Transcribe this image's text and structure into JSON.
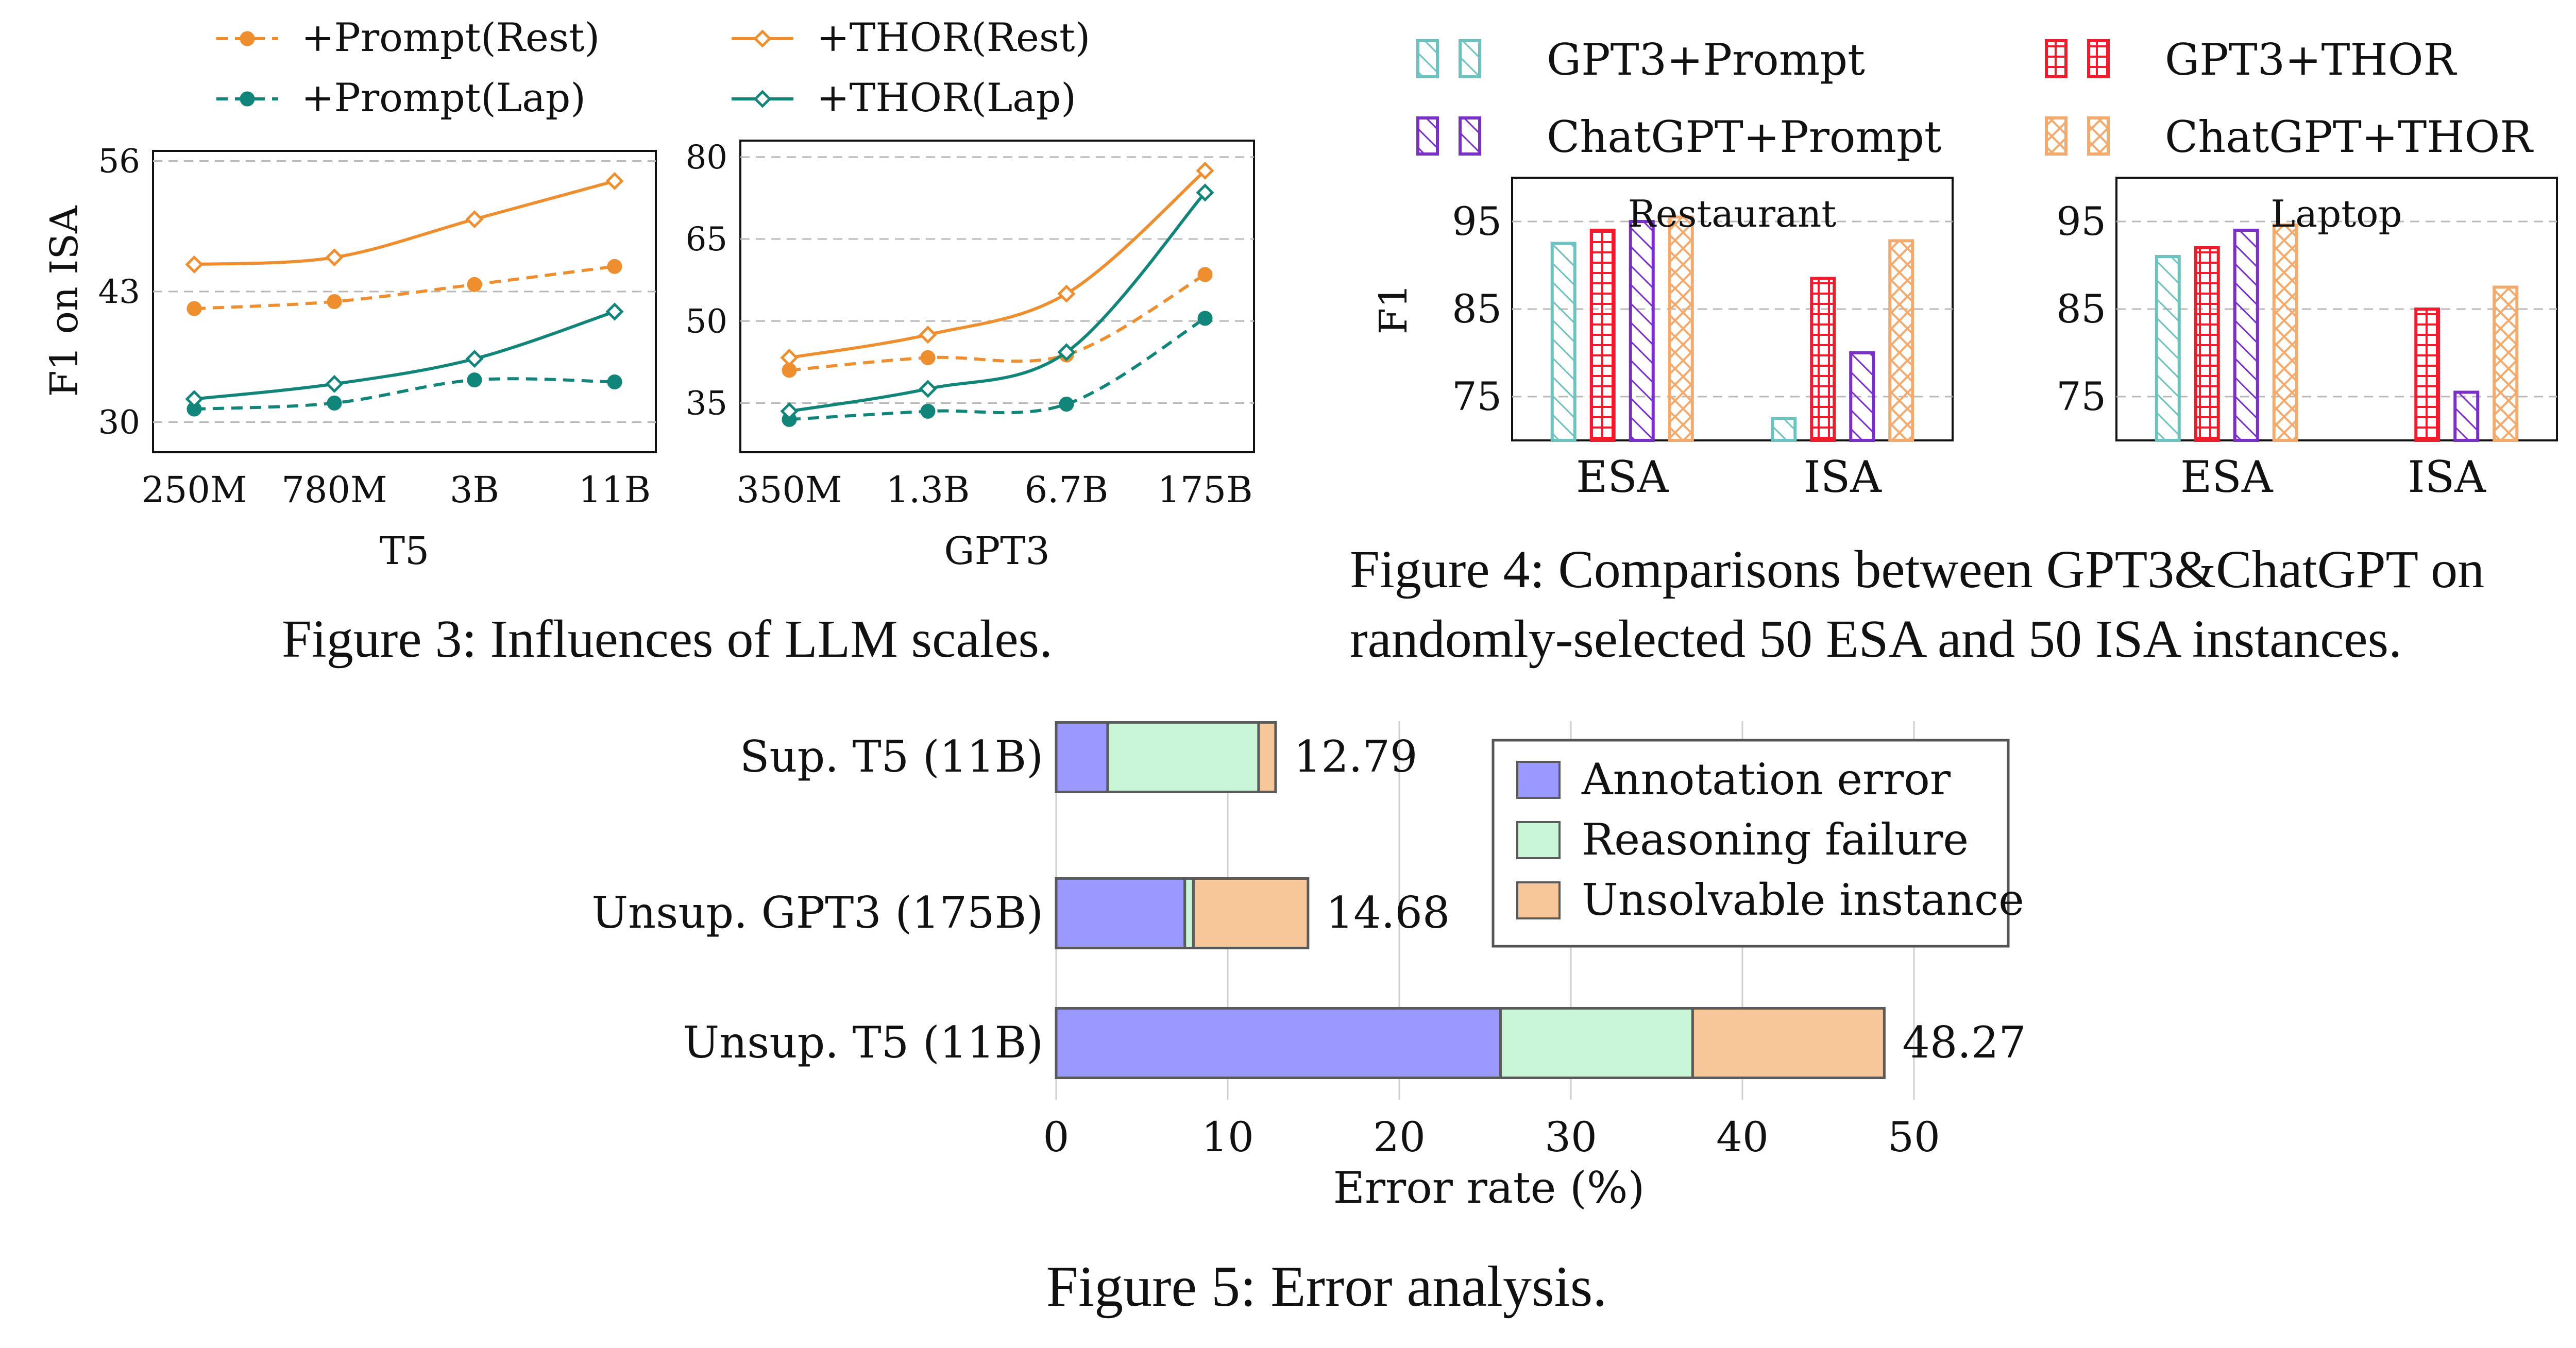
{
  "figures": {
    "fig3": {
      "caption": "Figure 3: Influences of LLM scales."
    },
    "fig4": {
      "caption_line1": "Figure 4: Comparisons between GPT3&ChatGPT on",
      "caption_line2": "randomly-selected 50 ESA and 50 ISA instances."
    },
    "fig5": {
      "caption": "Figure 5: Error analysis."
    }
  },
  "colors": {
    "orange": "#EF8E2F",
    "teal": "#12857B",
    "gpt3_prompt": "#6CC2BE",
    "gpt3_thor": "#EE1C2C",
    "chatgpt_prompt": "#7A2FC8",
    "chatgpt_thor": "#F4AA6C",
    "annotation": "#9999FF",
    "reasoning": "#C8F6D6",
    "unsolvable": "#F7C79A"
  },
  "legends": {
    "fig3": [
      {
        "label": "+Prompt(Rest)",
        "color": "#EF8E2F",
        "dash": true,
        "marker": "circle"
      },
      {
        "label": "+THOR(Rest)",
        "color": "#EF8E2F",
        "dash": false,
        "marker": "diamond"
      },
      {
        "label": "+Prompt(Lap)",
        "color": "#12857B",
        "dash": true,
        "marker": "circle"
      },
      {
        "label": "+THOR(Lap)",
        "color": "#12857B",
        "dash": false,
        "marker": "diamond"
      }
    ],
    "fig4": [
      {
        "label": "GPT3+Prompt",
        "color": "#6CC2BE",
        "pattern": "diag"
      },
      {
        "label": "GPT3+THOR",
        "color": "#EE1C2C",
        "pattern": "grid"
      },
      {
        "label": "ChatGPT+Prompt",
        "color": "#7A2FC8",
        "pattern": "diag"
      },
      {
        "label": "ChatGPT+THOR",
        "color": "#F4AA6C",
        "pattern": "cross"
      }
    ],
    "fig5": [
      {
        "label": "Annotation error",
        "color": "#9999FF"
      },
      {
        "label": "Reasoning failure",
        "color": "#C8F6D6"
      },
      {
        "label": "Unsolvable instance",
        "color": "#F7C79A"
      }
    ]
  },
  "chart_data": [
    {
      "type": "line",
      "id": "t5",
      "xlabel": "T5",
      "ylabel": "F1 on ISA",
      "categories": [
        "250M",
        "780M",
        "3B",
        "11B"
      ],
      "ylim": [
        27,
        57
      ],
      "yticks": [
        30,
        43,
        56
      ],
      "grid": true,
      "series": [
        {
          "name": "+Prompt(Rest)",
          "values": [
            41.3,
            42.0,
            43.7,
            45.5
          ]
        },
        {
          "name": "+THOR(Rest)",
          "values": [
            45.7,
            46.4,
            50.2,
            54.0
          ]
        },
        {
          "name": "+Prompt(Lap)",
          "values": [
            31.3,
            31.9,
            34.2,
            34.0
          ]
        },
        {
          "name": "+THOR(Lap)",
          "values": [
            32.3,
            33.8,
            36.3,
            41.0
          ]
        }
      ]
    },
    {
      "type": "line",
      "id": "gpt3",
      "xlabel": "GPT3",
      "ylabel": "",
      "categories": [
        "350M",
        "1.3B",
        "6.7B",
        "175B"
      ],
      "ylim": [
        26,
        83
      ],
      "yticks": [
        35,
        50,
        65,
        80
      ],
      "grid": true,
      "series": [
        {
          "name": "+Prompt(Rest)",
          "values": [
            41.0,
            43.3,
            43.8,
            58.5
          ]
        },
        {
          "name": "+THOR(Rest)",
          "values": [
            43.3,
            47.5,
            55.0,
            77.5
          ]
        },
        {
          "name": "+Prompt(Lap)",
          "values": [
            32.0,
            33.5,
            34.8,
            50.5
          ]
        },
        {
          "name": "+THOR(Lap)",
          "values": [
            33.5,
            37.6,
            44.3,
            73.5
          ]
        }
      ]
    },
    {
      "type": "bar",
      "id": "restaurant",
      "title": "Restaurant",
      "ylabel": "F1",
      "categories": [
        "ESA",
        "ISA"
      ],
      "ylim": [
        70,
        100
      ],
      "yticks": [
        75,
        85,
        95
      ],
      "grid": true,
      "series": [
        {
          "name": "GPT3+Prompt",
          "values": [
            92.5,
            72.5
          ]
        },
        {
          "name": "GPT3+THOR",
          "values": [
            94.0,
            88.5
          ]
        },
        {
          "name": "ChatGPT+Prompt",
          "values": [
            95.0,
            80.0
          ]
        },
        {
          "name": "ChatGPT+THOR",
          "values": [
            95.5,
            92.8
          ]
        }
      ]
    },
    {
      "type": "bar",
      "id": "laptop",
      "title": "Laptop",
      "ylabel": "",
      "categories": [
        "ESA",
        "ISA"
      ],
      "ylim": [
        70,
        100
      ],
      "yticks": [
        75,
        85,
        95
      ],
      "grid": true,
      "series": [
        {
          "name": "GPT3+Prompt",
          "values": [
            91.0,
            70.0
          ]
        },
        {
          "name": "GPT3+THOR",
          "values": [
            92.0,
            85.0
          ]
        },
        {
          "name": "ChatGPT+Prompt",
          "values": [
            94.0,
            75.5
          ]
        },
        {
          "name": "ChatGPT+THOR",
          "values": [
            94.6,
            87.5
          ]
        }
      ]
    },
    {
      "type": "bar",
      "id": "error",
      "orientation": "horizontal",
      "stacked": true,
      "xlabel": "Error rate (%)",
      "categories": [
        "Sup. T5 (11B)",
        "Unsup. GPT3 (175B)",
        "Unsup. T5 (11B)"
      ],
      "xlim": [
        0,
        50
      ],
      "xticks": [
        0,
        10,
        20,
        30,
        40,
        50
      ],
      "grid": true,
      "totals": [
        "12.79",
        "14.68",
        "48.27"
      ],
      "series": [
        {
          "name": "Annotation error",
          "values": [
            3.0,
            7.5,
            25.9
          ]
        },
        {
          "name": "Reasoning failure",
          "values": [
            8.8,
            0.5,
            11.2
          ]
        },
        {
          "name": "Unsolvable instance",
          "values": [
            0.99,
            6.68,
            11.17
          ]
        }
      ]
    }
  ]
}
